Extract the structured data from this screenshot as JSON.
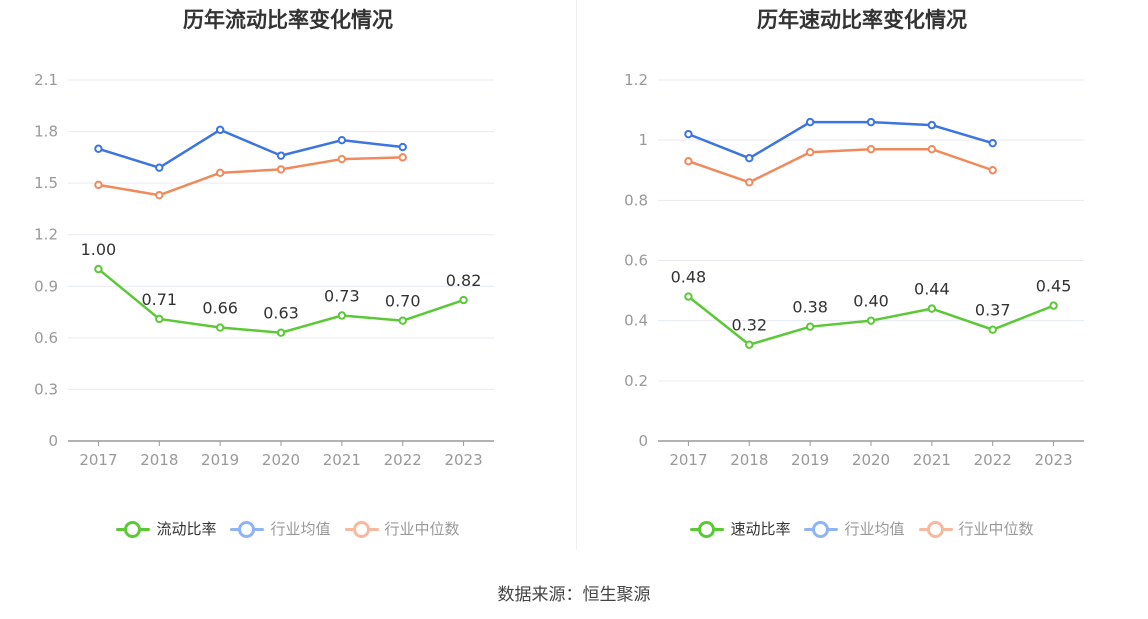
{
  "source_label": "数据来源：恒生聚源",
  "colors": {
    "company": "#5ac935",
    "avg": "#3c74e0",
    "median": "#f08a5c",
    "axis": "#999999",
    "grid": "#e6e9f2",
    "label": "#333333",
    "legend_text_active": "#333333",
    "legend_text_inactive": "#999999",
    "legend_avg": "#8eb4f3",
    "legend_median": "#f6b89e"
  },
  "chart_data": [
    {
      "type": "line",
      "title": "历年流动比率变化情况",
      "categories": [
        "2017",
        "2018",
        "2019",
        "2020",
        "2021",
        "2022",
        "2023"
      ],
      "ylim": [
        0,
        2.1
      ],
      "yticks": [
        "0",
        "0.3",
        "0.6",
        "0.9",
        "1.2",
        "1.5",
        "1.8",
        "2.1"
      ],
      "grid": true,
      "legend_position": "bottom",
      "series": [
        {
          "name": "流动比率",
          "role": "company",
          "values": [
            1.0,
            0.71,
            0.66,
            0.63,
            0.73,
            0.7,
            0.82
          ],
          "labels": [
            "1.00",
            "0.71",
            "0.66",
            "0.63",
            "0.73",
            "0.70",
            "0.82"
          ]
        },
        {
          "name": "行业均值",
          "role": "avg",
          "values": [
            1.7,
            1.59,
            1.81,
            1.66,
            1.75,
            1.71,
            null
          ]
        },
        {
          "name": "行业中位数",
          "role": "median",
          "values": [
            1.49,
            1.43,
            1.56,
            1.58,
            1.64,
            1.65,
            null
          ]
        }
      ]
    },
    {
      "type": "line",
      "title": "历年速动比率变化情况",
      "categories": [
        "2017",
        "2018",
        "2019",
        "2020",
        "2021",
        "2022",
        "2023"
      ],
      "ylim": [
        0,
        1.2
      ],
      "yticks": [
        "0",
        "0.2",
        "0.4",
        "0.6",
        "0.8",
        "1",
        "1.2"
      ],
      "grid": true,
      "legend_position": "bottom",
      "series": [
        {
          "name": "速动比率",
          "role": "company",
          "values": [
            0.48,
            0.32,
            0.38,
            0.4,
            0.44,
            0.37,
            0.45
          ],
          "labels": [
            "0.48",
            "0.32",
            "0.38",
            "0.40",
            "0.44",
            "0.37",
            "0.45"
          ]
        },
        {
          "name": "行业均值",
          "role": "avg",
          "values": [
            1.02,
            0.94,
            1.06,
            1.06,
            1.05,
            0.99,
            null
          ]
        },
        {
          "name": "行业中位数",
          "role": "median",
          "values": [
            0.93,
            0.86,
            0.96,
            0.97,
            0.97,
            0.9,
            null
          ]
        }
      ]
    }
  ]
}
